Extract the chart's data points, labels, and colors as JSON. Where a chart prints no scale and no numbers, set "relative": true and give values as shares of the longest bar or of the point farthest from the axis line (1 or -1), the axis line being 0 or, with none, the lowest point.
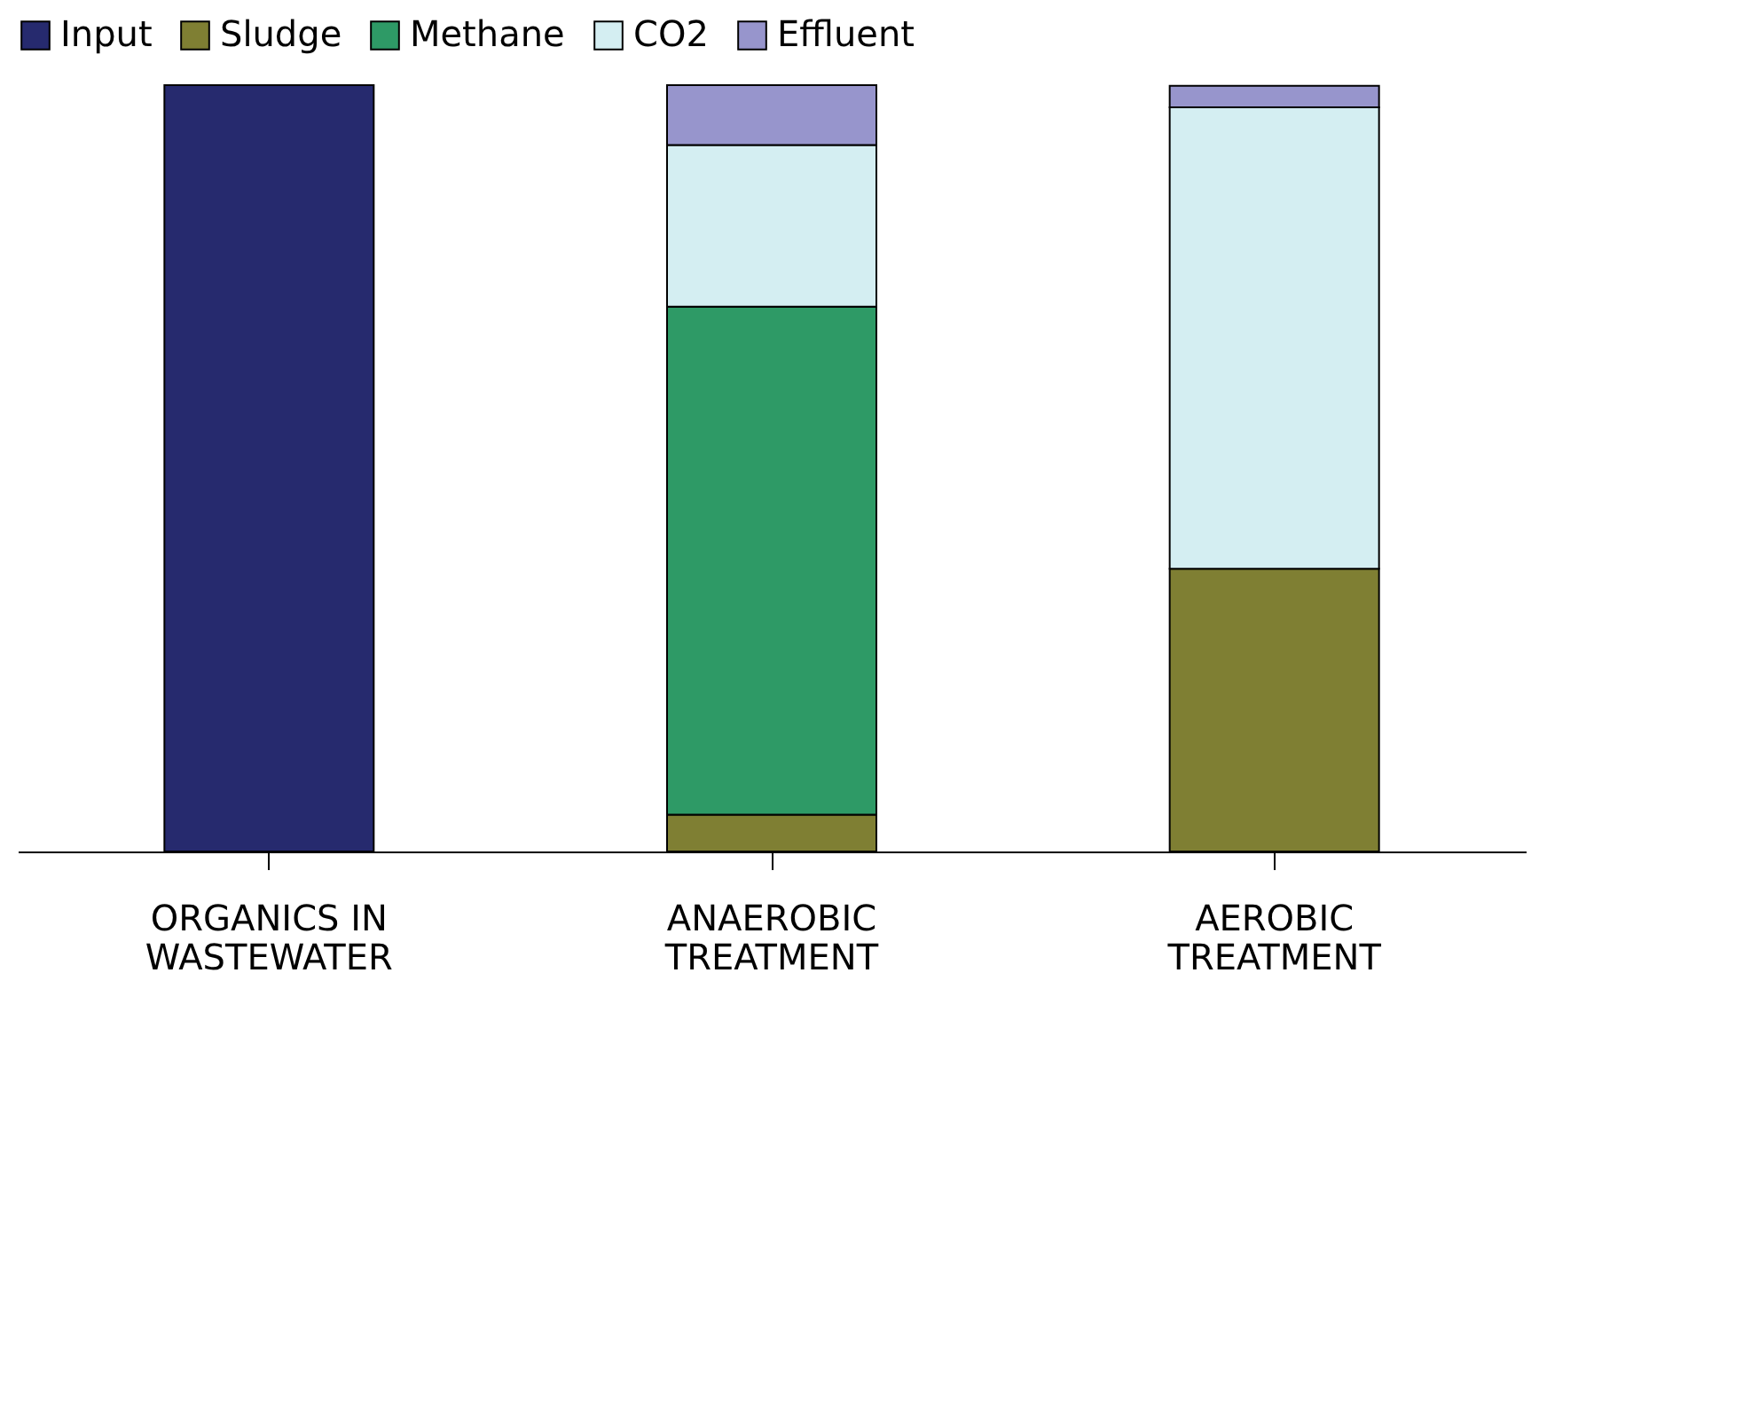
{
  "chart_data": {
    "type": "bar",
    "stacked": true,
    "relative": true,
    "legend": "top",
    "categories": [
      "ORGANICS IN WASTEWATER",
      "ANAEROBIC TREATMENT",
      "AEROBIC TREATMENT"
    ],
    "series": [
      {
        "name": "Input",
        "color": "#262a6e",
        "values": [
          1,
          null,
          null
        ]
      },
      {
        "name": "Sludge",
        "color": "#7f7f33",
        "values": [
          null,
          0.048,
          0.369
        ]
      },
      {
        "name": "Methane",
        "color": "#2e9a66",
        "values": [
          null,
          0.663,
          null
        ]
      },
      {
        "name": "CO2",
        "color": "#d4eef2",
        "values": [
          null,
          0.211,
          0.602
        ]
      },
      {
        "name": "Effluent",
        "color": "#9795cc",
        "values": [
          null,
          0.078,
          0.028
        ]
      }
    ]
  }
}
